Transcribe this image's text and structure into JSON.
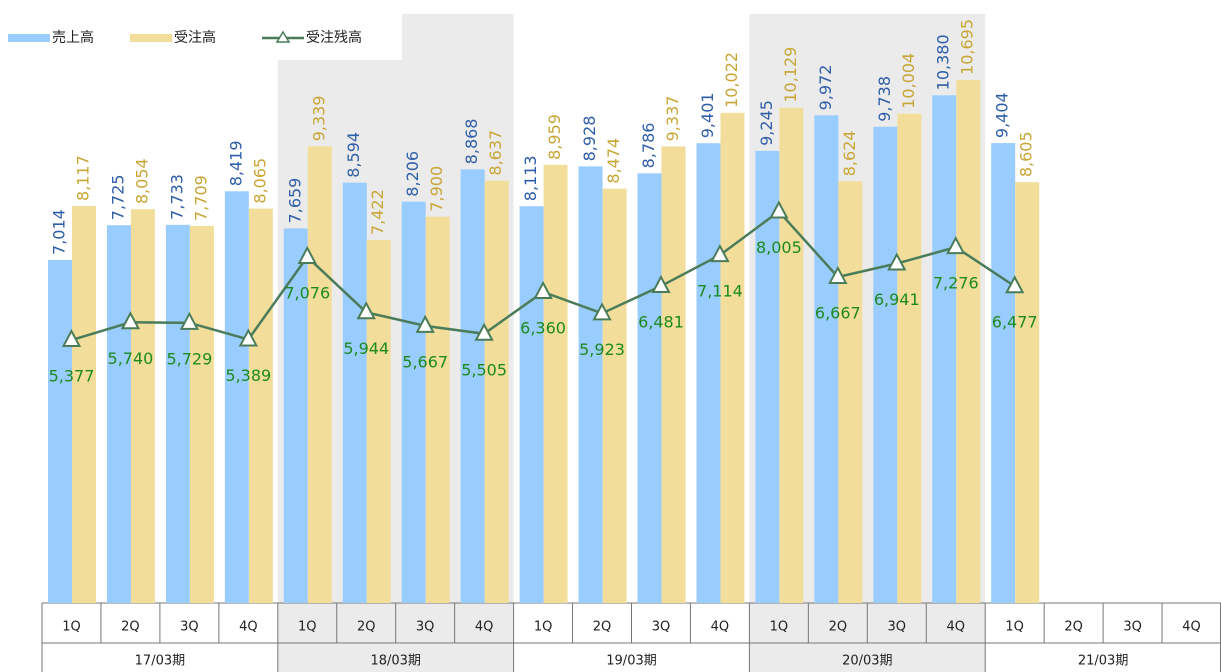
{
  "chart_data": {
    "type": "bar",
    "categories": [
      "1Q",
      "2Q",
      "3Q",
      "4Q",
      "1Q",
      "2Q",
      "3Q",
      "4Q",
      "1Q",
      "2Q",
      "3Q",
      "4Q",
      "1Q",
      "2Q",
      "3Q",
      "4Q",
      "1Q",
      "2Q",
      "3Q",
      "4Q"
    ],
    "groups": [
      {
        "label": "17/03期",
        "shaded": false
      },
      {
        "label": "18/03期",
        "shaded": true
      },
      {
        "label": "19/03期",
        "shaded": false
      },
      {
        "label": "20/03期",
        "shaded": true
      },
      {
        "label": "21/03期",
        "shaded": false
      }
    ],
    "ylim": [
      0,
      12330
    ],
    "legend": "top-left",
    "series": [
      {
        "name": "売上高",
        "type": "bar",
        "color": "#99ccff",
        "label_color": "#2f5ea8",
        "values": [
          7014,
          7725,
          7733,
          8419,
          7659,
          8594,
          8206,
          8868,
          8113,
          8928,
          8786,
          9401,
          9245,
          9972,
          9738,
          10380,
          9404,
          null,
          null,
          null
        ],
        "value_labels": [
          "7,014",
          "7,725",
          "7,733",
          "8,419",
          "7,659",
          "8,594",
          "8,206",
          "8,868",
          "8,113",
          "8,928",
          "8,786",
          "9,401",
          "9,245",
          "9,972",
          "9,738",
          "10,380",
          "9,404",
          null,
          null,
          null
        ]
      },
      {
        "name": "受注高",
        "type": "bar",
        "color": "#f2de9a",
        "label_color": "#c8a636",
        "values": [
          8117,
          8054,
          7709,
          8065,
          9339,
          7422,
          7900,
          8637,
          8959,
          8474,
          9337,
          10022,
          10129,
          8624,
          10004,
          10695,
          8605,
          null,
          null,
          null
        ],
        "value_labels": [
          "8,117",
          "8,054",
          "7,709",
          "8,065",
          "9,339",
          "7,422",
          "7,900",
          "8,637",
          "8,959",
          "8,474",
          "9,337",
          "10,022",
          "10,129",
          "8,624",
          "10,004",
          "10,695",
          "8,605",
          null,
          null,
          null
        ]
      },
      {
        "name": "受注残高",
        "type": "line",
        "color": "#4a7c59",
        "label_color": "#1e8a1e",
        "values": [
          5377,
          5740,
          5729,
          5389,
          7076,
          5944,
          5667,
          5505,
          6360,
          5923,
          6481,
          7114,
          8005,
          6667,
          6941,
          7276,
          6477,
          null,
          null,
          null
        ],
        "value_labels": [
          "5,377",
          "5,740",
          "5,729",
          "5,389",
          "7,076",
          "5,944",
          "5,667",
          "5,505",
          "6,360",
          "5,923",
          "6,481",
          "7,114",
          "8,005",
          "6,667",
          "6,941",
          "7,276",
          "6,477",
          null,
          null,
          null
        ]
      }
    ]
  }
}
